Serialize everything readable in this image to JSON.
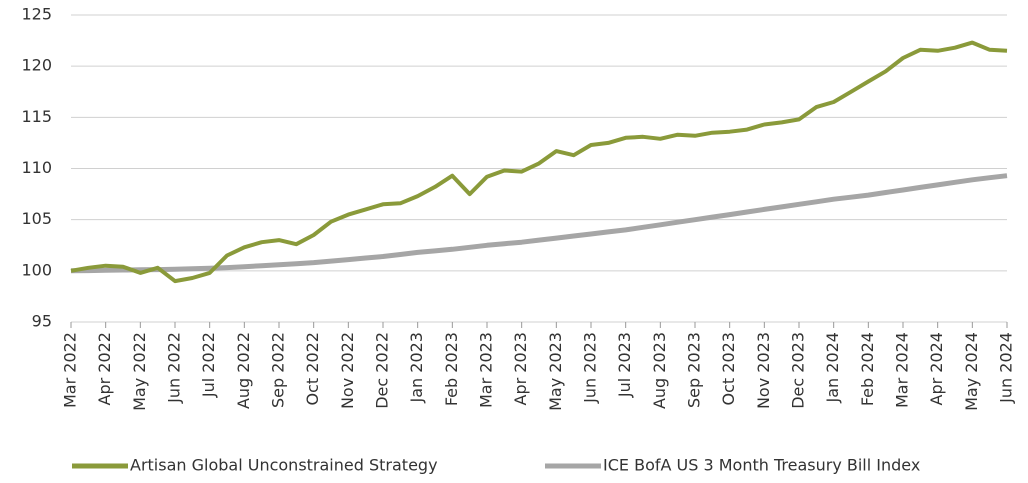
{
  "chart_data": {
    "type": "line",
    "categories": [
      "Mar 2022",
      null,
      "Apr 2022",
      null,
      "May 2022",
      null,
      "Jun 2022",
      null,
      "Jul 2022",
      null,
      "Aug 2022",
      null,
      "Sep 2022",
      null,
      "Oct 2022",
      null,
      "Nov 2022",
      null,
      "Dec 2022",
      null,
      "Jan 2023",
      null,
      "Feb 2023",
      null,
      "Mar 2023",
      null,
      "Apr 2023",
      null,
      "May 2023",
      null,
      "Jun 2023",
      null,
      "Jul 2023",
      null,
      "Aug 2023",
      null,
      "Sep 2023",
      null,
      "Oct 2023",
      null,
      "Nov 2023",
      null,
      "Dec 2023",
      null,
      "Jan 2024",
      null,
      "Feb 2024",
      null,
      "Mar 2024",
      null,
      "Apr 2024",
      null,
      "May 2024",
      null,
      "Jun 2024"
    ],
    "series": [
      {
        "name": "Artisan Global Unconstrained Strategy",
        "color": "#8a9a3a",
        "values": [
          100,
          100.3,
          100.5,
          100.4,
          99.8,
          100.3,
          99,
          99.3,
          99.8,
          101.5,
          102.3,
          102.8,
          103,
          102.6,
          103.5,
          104.8,
          105.5,
          106,
          106.5,
          106.6,
          107.3,
          108.2,
          109.3,
          107.5,
          109.2,
          109.8,
          109.7,
          110.5,
          111.7,
          111.3,
          112.3,
          112.5,
          113,
          113.1,
          112.9,
          113.3,
          113.2,
          113.5,
          113.6,
          113.8,
          114.3,
          114.5,
          114.8,
          116,
          116.5,
          117.5,
          118.5,
          119.5,
          120.8,
          121.6,
          121.5,
          121.8,
          122.3,
          121.6,
          121.5
        ]
      },
      {
        "name": "ICE BofA US 3 Month Treasury Bill Index",
        "color": "#a6a6a6",
        "values": [
          100,
          100.02,
          100.05,
          100.08,
          100.1,
          100.12,
          100.15,
          100.2,
          100.25,
          100.32,
          100.4,
          100.5,
          100.6,
          100.7,
          100.8,
          100.95,
          101.1,
          101.25,
          101.4,
          101.6,
          101.8,
          101.95,
          102.1,
          102.3,
          102.5,
          102.65,
          102.8,
          103,
          103.2,
          103.4,
          103.6,
          103.8,
          104,
          104.25,
          104.5,
          104.75,
          105,
          105.25,
          105.5,
          105.75,
          106,
          106.25,
          106.5,
          106.75,
          107,
          107.2,
          107.4,
          107.65,
          107.9,
          108.15,
          108.4,
          108.65,
          108.9,
          109.1,
          109.3
        ]
      }
    ],
    "ylim": [
      95,
      125
    ],
    "yticks": [
      95,
      100,
      105,
      110,
      115,
      120,
      125
    ],
    "grid": true,
    "legend": "bottom"
  }
}
